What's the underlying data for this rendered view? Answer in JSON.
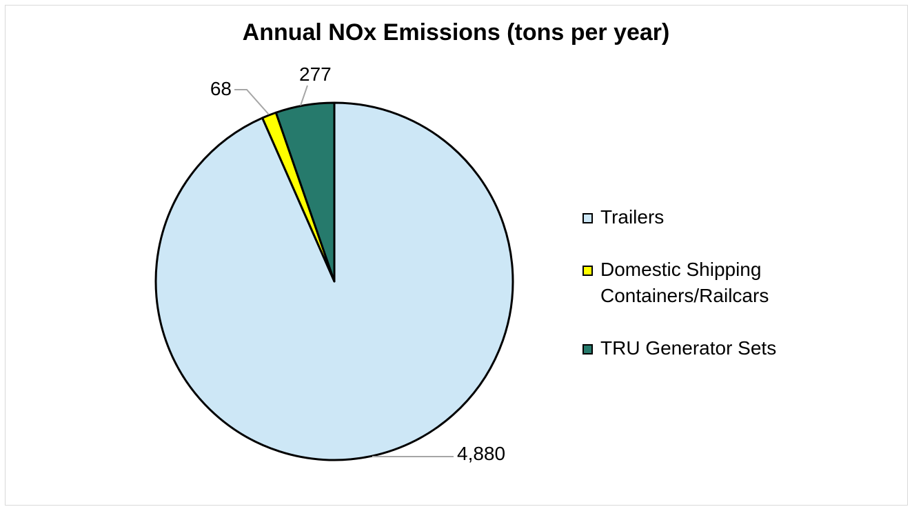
{
  "chart_data": {
    "type": "pie",
    "title": "Annual NOx Emissions (tons per year)",
    "start_angle": "top, clockwise",
    "slices": [
      {
        "label": "Trailers",
        "value": 4880,
        "display": "4,880",
        "color": "#CDE7F6"
      },
      {
        "label": "Domestic Shipping Containers/Railcars",
        "value": 68,
        "display": "68",
        "color": "#FFFF00"
      },
      {
        "label": "TRU Generator Sets",
        "value": 277,
        "display": "277",
        "color": "#267A6C"
      }
    ],
    "legend": {
      "position": "right",
      "items": [
        {
          "lines": [
            "Trailers"
          ],
          "color": "#CDE7F6"
        },
        {
          "lines": [
            "Domestic Shipping",
            "Containers/Railcars"
          ],
          "color": "#FFFF00"
        },
        {
          "lines": [
            "TRU Generator Sets"
          ],
          "color": "#267A6C"
        }
      ]
    }
  }
}
